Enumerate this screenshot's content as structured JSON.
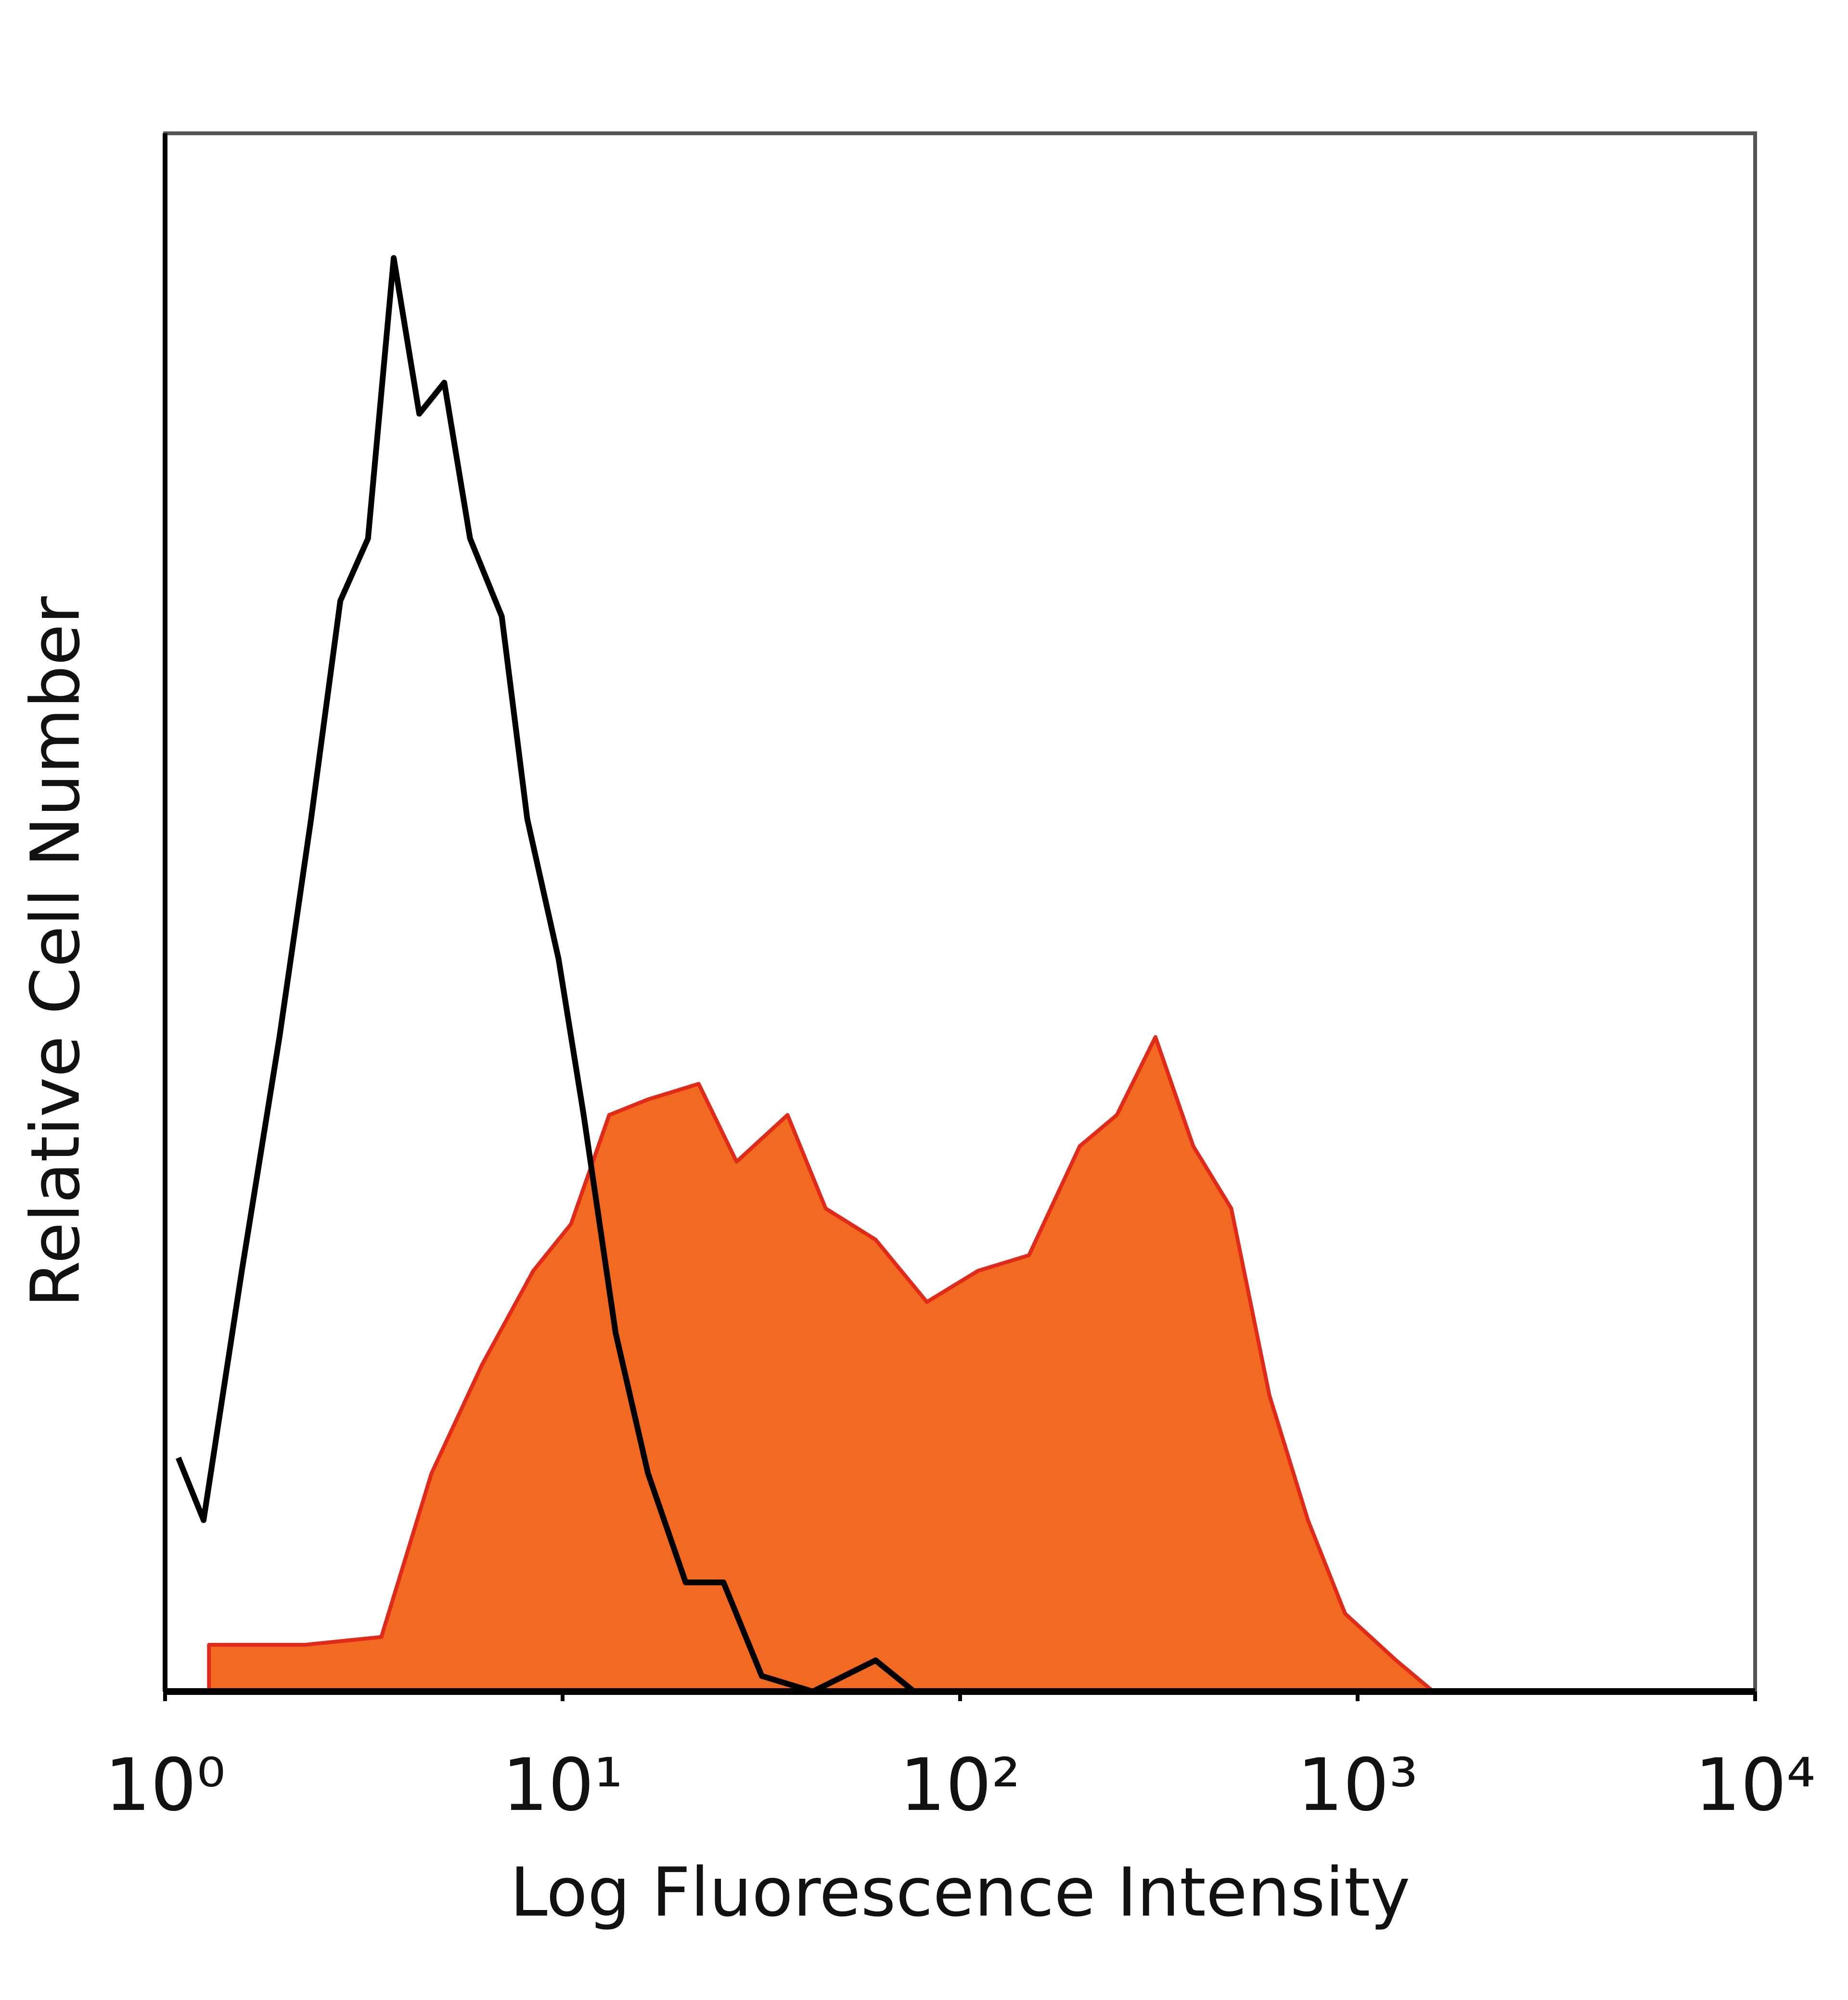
{
  "chart_data": {
    "type": "histogram-overlay",
    "x_label": "Log Fluorescence Intensity",
    "y_label": "Relative Cell Number",
    "x_log": true,
    "xlim": [
      1,
      10000
    ],
    "ylim": [
      0,
      100
    ],
    "xticks": [
      {
        "value": 1,
        "label": "10⁰"
      },
      {
        "value": 10,
        "label": "10¹"
      },
      {
        "value": 100,
        "label": "10²"
      },
      {
        "value": 1000,
        "label": "10³"
      },
      {
        "value": 10000,
        "label": "10⁴"
      }
    ],
    "series": [
      {
        "color": "#f26a21",
        "edge_color": "#e02a1a",
        "fill": true,
        "x": [
          1.29,
          2.25,
          3.5,
          4.68,
          6.28,
          8.44,
          10.5,
          13.1,
          16.4,
          22,
          27.4,
          36.8,
          45.9,
          61.3,
          82.5,
          111,
          149,
          200,
          248,
          310,
          386,
          481,
          600,
          750,
          930,
          1250,
          1550
        ],
        "values": [
          3,
          3,
          3.5,
          14,
          21,
          27,
          30,
          37,
          38,
          39,
          34,
          37,
          31,
          29,
          25,
          27,
          28,
          35,
          37,
          42,
          35,
          31,
          19,
          11,
          5,
          2,
          0
        ]
      },
      {
        "color": "#000000",
        "fill": false,
        "x": [
          1.08,
          1.25,
          1.56,
          1.94,
          2.33,
          2.76,
          3.24,
          3.76,
          4.36,
          5.04,
          5.85,
          7.03,
          8.15,
          9.77,
          11.3,
          13.6,
          16.4,
          20.4,
          25.4,
          31.7,
          42.6,
          61.3,
          76.6
        ],
        "values": [
          15,
          11,
          27,
          42,
          56,
          70,
          74,
          92,
          82,
          84,
          74,
          69,
          56,
          47,
          37,
          23,
          14,
          7,
          7,
          1,
          0,
          2,
          0
        ]
      }
    ]
  }
}
